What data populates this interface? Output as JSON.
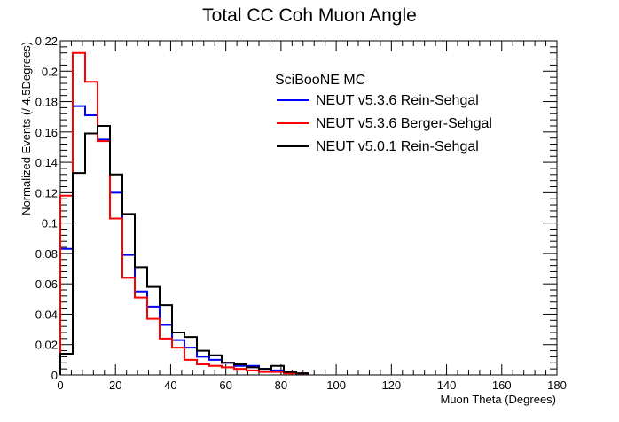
{
  "chart_data": {
    "type": "line",
    "title": "Total CC Coh Muon Angle",
    "xlabel": "Muon Theta (Degrees)",
    "ylabel": "Normalized Events (/ 4.5Degrees)",
    "xlim": [
      0,
      180
    ],
    "ylim": [
      0,
      0.22
    ],
    "x_ticks": [
      0,
      20,
      40,
      60,
      80,
      100,
      120,
      140,
      160,
      180
    ],
    "x_tick_labels": [
      "0",
      "20",
      "40",
      "60",
      "80",
      "100",
      "120",
      "140",
      "160",
      "180"
    ],
    "y_ticks": [
      0,
      0.02,
      0.04,
      0.06,
      0.08,
      0.1,
      0.12,
      0.14,
      0.16,
      0.18,
      0.2,
      0.22
    ],
    "y_tick_labels": [
      "0",
      "0.02",
      "0.04",
      "0.06",
      "0.08",
      "0.1",
      "0.12",
      "0.14",
      "0.16",
      "0.18",
      "0.2",
      "0.22"
    ],
    "bin_width": 4.5,
    "legend_header": "SciBooNE MC",
    "legend_position": "top-right",
    "grid": false,
    "series": [
      {
        "name": "NEUT v5.3.6 Rein-Sehgal",
        "color": "#0000ff",
        "values": [
          0.083,
          0.177,
          0.171,
          0.155,
          0.12,
          0.079,
          0.055,
          0.045,
          0.033,
          0.023,
          0.018,
          0.012,
          0.01,
          0.008,
          0.006,
          0.006,
          0.004,
          0.003,
          0.002,
          0.001
        ]
      },
      {
        "name": "NEUT v5.3.6 Berger-Sehgal",
        "color": "#ff0000",
        "values": [
          0.118,
          0.212,
          0.193,
          0.154,
          0.103,
          0.064,
          0.051,
          0.037,
          0.024,
          0.018,
          0.01,
          0.007,
          0.006,
          0.005,
          0.004,
          0.003,
          0.002,
          0.002,
          0.001,
          0.001
        ]
      },
      {
        "name": "NEUT v5.0.1 Rein-Sehgal",
        "color": "#000000",
        "values": [
          0.014,
          0.133,
          0.159,
          0.164,
          0.132,
          0.106,
          0.071,
          0.058,
          0.046,
          0.028,
          0.025,
          0.016,
          0.013,
          0.008,
          0.007,
          0.005,
          0.004,
          0.006,
          0.002,
          0.001
        ]
      }
    ]
  }
}
